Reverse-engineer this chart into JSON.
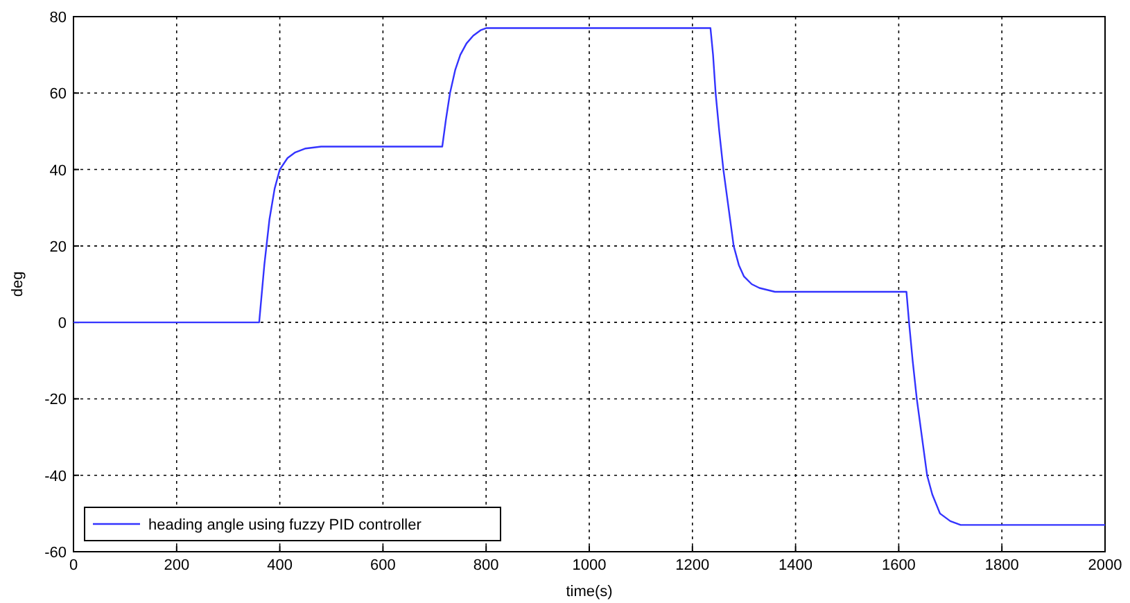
{
  "chart_data": {
    "type": "line",
    "xlabel": "time(s)",
    "ylabel": "deg",
    "xlim": [
      0,
      2000
    ],
    "ylim": [
      -60,
      80
    ],
    "xticks": [
      0,
      200,
      400,
      600,
      800,
      1000,
      1200,
      1400,
      1600,
      1800,
      2000
    ],
    "yticks": [
      -60,
      -40,
      -20,
      0,
      20,
      40,
      60,
      80
    ],
    "grid": true,
    "legend": "bottom left",
    "line_style": "solid",
    "marker": "none",
    "series": [
      {
        "name": "heading angle using fuzzy PID controller",
        "color": "#3333ff",
        "x": [
          0,
          360,
          370,
          380,
          390,
          400,
          415,
          430,
          450,
          480,
          715,
          722,
          730,
          740,
          750,
          762,
          775,
          790,
          800,
          1235,
          1240,
          1245,
          1252,
          1260,
          1270,
          1280,
          1290,
          1300,
          1315,
          1330,
          1360,
          1615,
          1620,
          1627,
          1635,
          1645,
          1655,
          1665,
          1680,
          1700,
          1720,
          2000
        ],
        "values": [
          0,
          0,
          15,
          27,
          35,
          40,
          43,
          44.5,
          45.5,
          46,
          46,
          53,
          60,
          66,
          70,
          73,
          75,
          76.5,
          77,
          77,
          70,
          60,
          50,
          40,
          30,
          20,
          15,
          12,
          10,
          9,
          8,
          8,
          0,
          -10,
          -20,
          -30,
          -40,
          -45,
          -50,
          -52,
          -53,
          -53
        ]
      }
    ]
  }
}
